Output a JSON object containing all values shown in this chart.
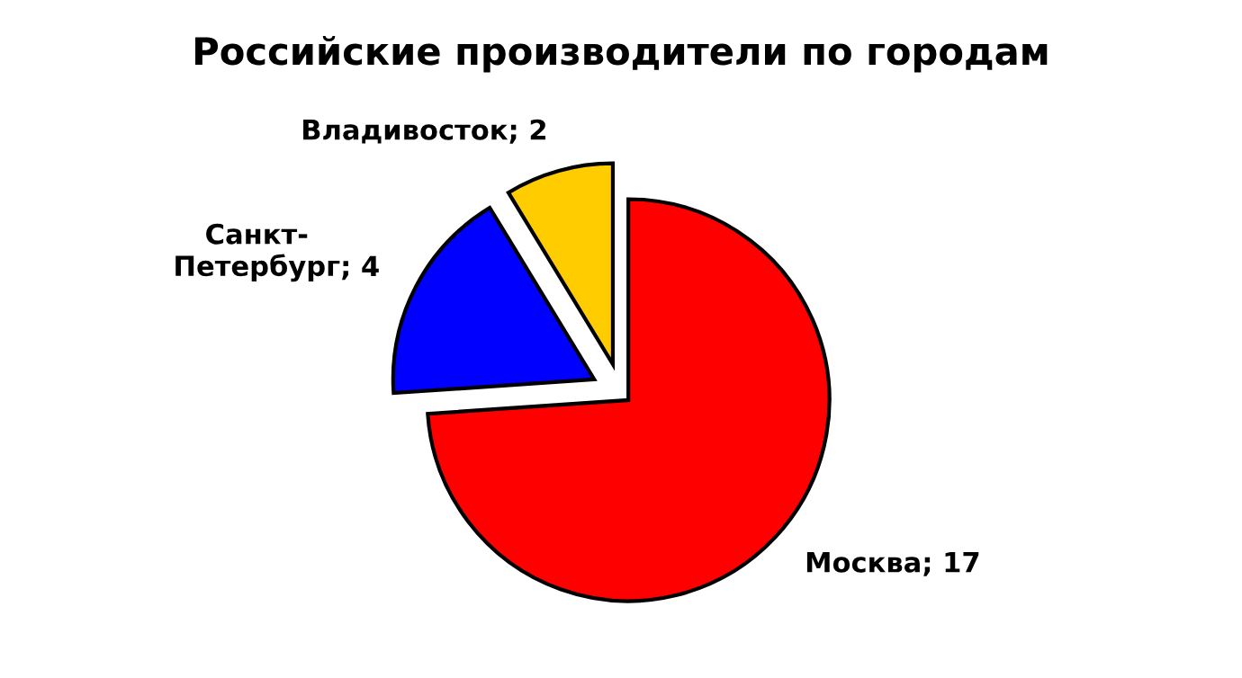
{
  "chart_data": {
    "type": "pie",
    "title": "Российские производители по городам",
    "categories": [
      "Москва",
      "Санкт-Петербург",
      "Владивосток"
    ],
    "values": [
      17,
      4,
      2
    ],
    "colors": [
      "#ff0000",
      "#0000ff",
      "#ffcc00"
    ],
    "value_labels": [
      "; 17",
      "; 4",
      "; 2"
    ]
  }
}
